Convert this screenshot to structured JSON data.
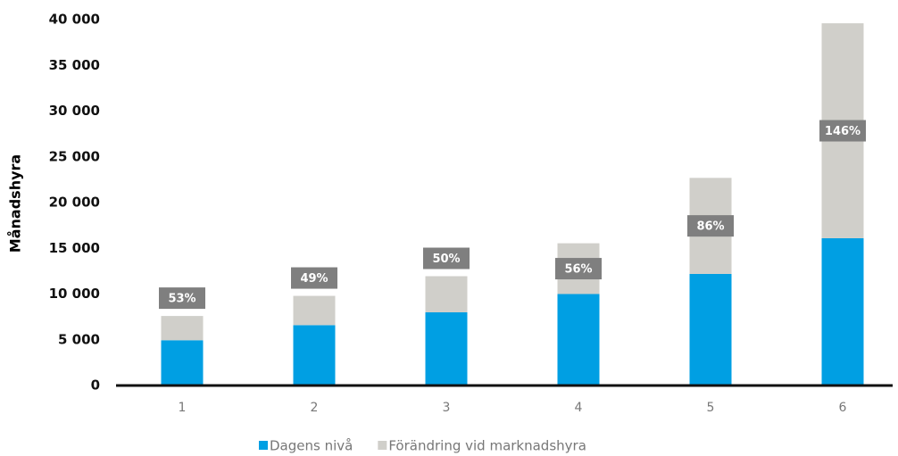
{
  "chart_data": {
    "type": "stacked_bar",
    "y_label": "Månadshyra",
    "categories": [
      "1",
      "2",
      "3",
      "4",
      "5",
      "6"
    ],
    "series": [
      {
        "name": "Dagens nivå",
        "color": "#009fe3",
        "values": [
          4950,
          6600,
          8000,
          10000,
          12200,
          16100
        ]
      },
      {
        "name": "Förändring vid marknadshyra",
        "color": "#d0cfca",
        "values": [
          2650,
          3200,
          3950,
          5550,
          10500,
          23500
        ]
      }
    ],
    "annotations": [
      "53%",
      "49%",
      "50%",
      "56%",
      "86%",
      "146%"
    ],
    "ylim": [
      0,
      40000
    ],
    "yticks": [
      0,
      {
        "value": 5000,
        "label": "5 000"
      },
      {
        "value": 10000,
        "label": "10 000"
      },
      {
        "value": 15000,
        "label": "15 000"
      },
      {
        "value": 20000,
        "label": "20 000"
      },
      {
        "value": 25000,
        "label": "25 000"
      },
      {
        "value": 30000,
        "label": "30 000"
      },
      {
        "value": 35000,
        "label": "35 000"
      },
      {
        "value": 40000,
        "label": "40 000"
      }
    ],
    "grid": false
  }
}
